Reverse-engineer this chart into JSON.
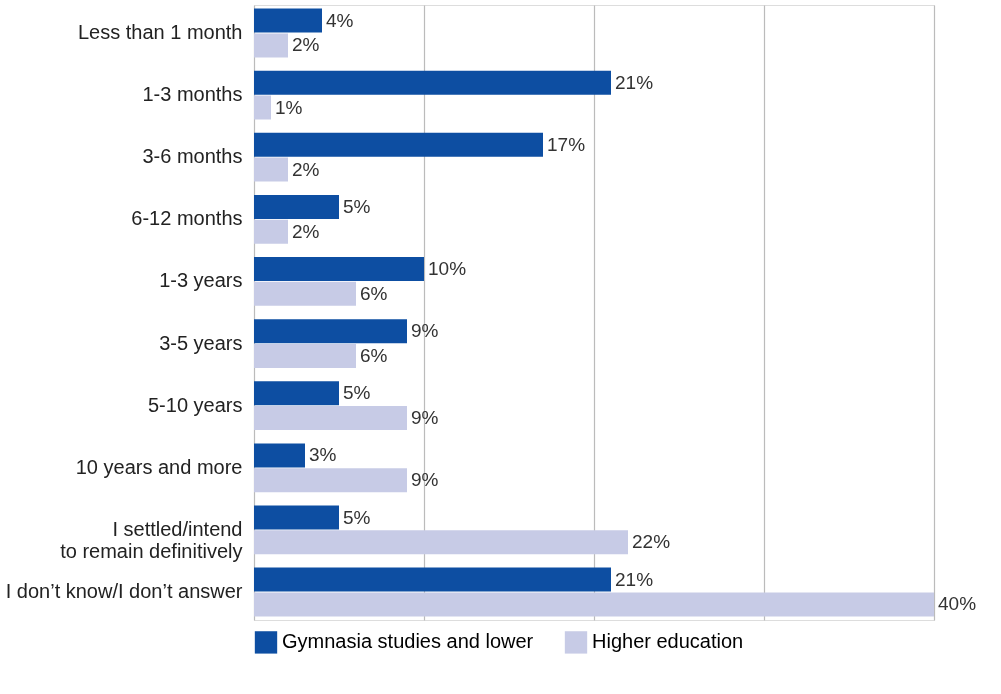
{
  "chart_data": {
    "type": "bar",
    "orientation": "horizontal",
    "categories": [
      "Less than 1 month",
      "1-3 months",
      "3-6 months",
      "6-12 months",
      "1-3 years",
      "3-5 years",
      "5-10 years",
      "10 years and more",
      "I settled/intend\nto remain definitively",
      "I don’t know/I don’t answer"
    ],
    "series": [
      {
        "name": "Gymnasia studies and lower",
        "color": "#0d4ea2",
        "values": [
          4,
          21,
          17,
          5,
          10,
          9,
          5,
          3,
          5,
          21
        ],
        "value_labels": [
          "4%",
          "21%",
          "17%",
          "5%",
          "10%",
          "9%",
          "5%",
          "3%",
          "5%",
          "21%"
        ]
      },
      {
        "name": "Higher education",
        "color": "#c7cbe6",
        "values": [
          2,
          1,
          2,
          2,
          6,
          6,
          9,
          9,
          22,
          40
        ],
        "value_labels": [
          "2%",
          "1%",
          "2%",
          "2%",
          "6%",
          "6%",
          "9%",
          "9%",
          "22%",
          "40%"
        ]
      }
    ],
    "xlim": [
      0,
      40
    ],
    "xticks": [
      {
        "value": 0,
        "label": null
      },
      {
        "value": 10,
        "label": null
      },
      {
        "value": 20,
        "label": null
      },
      {
        "value": 30,
        "label": null
      },
      {
        "value": 40,
        "label": null
      }
    ],
    "grid": "x",
    "tick_labels": "y",
    "legend": "bottom"
  }
}
